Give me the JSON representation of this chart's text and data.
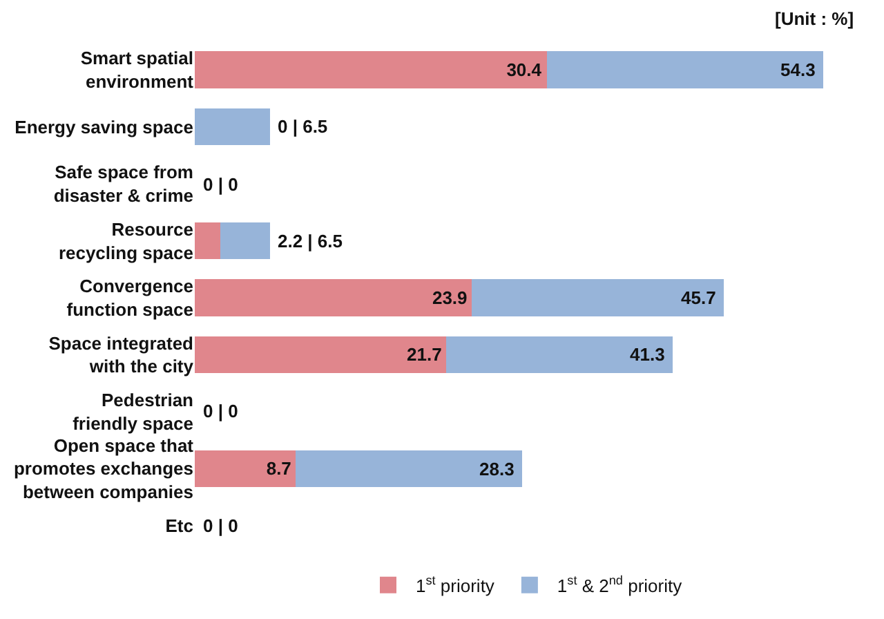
{
  "chart_data": {
    "type": "bar",
    "orientation": "horizontal",
    "stacked": true,
    "categories": [
      "Smart spatial\nenvironment",
      "Energy saving space",
      "Safe space from\ndisaster & crime",
      "Resource\nrecycling space",
      "Convergence\nfunction space",
      "Space integrated\nwith the city",
      "Pedestrian\nfriendly space",
      "Open space that\npromotes exchanges\nbetween companies",
      "Etc"
    ],
    "series": [
      {
        "name": "1$^{st}$ priority",
        "color": "#e0868c",
        "values": [
          30.4,
          0,
          0,
          2.2,
          23.9,
          21.7,
          0,
          8.7,
          0
        ],
        "value_labels": [
          "30.4",
          null,
          null,
          null,
          "23.9",
          "21.7",
          null,
          "8.7",
          null
        ]
      },
      {
        "name": "1$^{st}$ & 2$^{nd}$ priority",
        "color": "#97b4d9",
        "values": [
          23.9,
          6.5,
          0,
          4.3,
          21.8,
          19.6,
          0,
          19.6,
          0
        ]
      }
    ],
    "totals": [
      "54.3",
      "0 | 6.5",
      "0 | 0",
      "2.2 | 6.5",
      "45.7",
      "41.3",
      "0 | 0",
      "28.3",
      "0 | 0"
    ],
    "annotations": [
      "[Unit : %]"
    ],
    "legend": "bottom",
    "tick_labels": "y"
  }
}
